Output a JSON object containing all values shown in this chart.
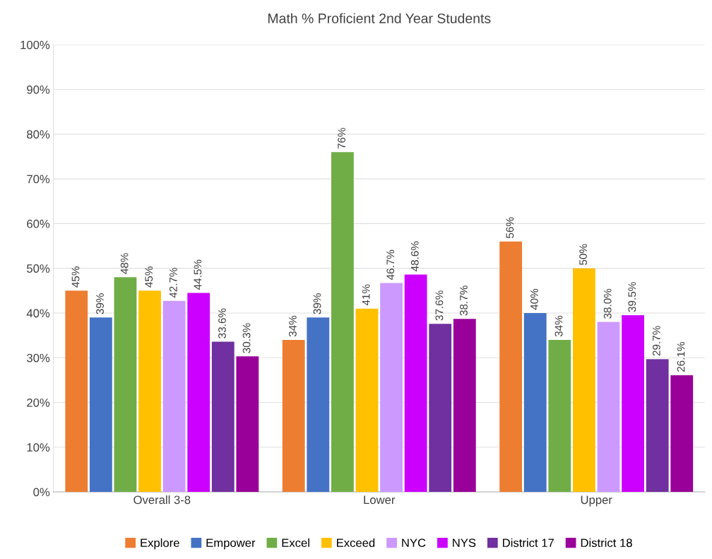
{
  "chart_data": {
    "type": "bar",
    "title": "Math % Proficient 2nd Year Students",
    "categories": [
      "Overall 3-8",
      "Lower",
      "Upper"
    ],
    "series": [
      {
        "name": "Explore",
        "color": "#ed7d31",
        "values": [
          45,
          34,
          56
        ],
        "value_labels": [
          "45%",
          "34%",
          "56%"
        ]
      },
      {
        "name": "Empower",
        "color": "#4472c4",
        "values": [
          39,
          39,
          40
        ],
        "value_labels": [
          "39%",
          "39%",
          "40%"
        ]
      },
      {
        "name": "Excel",
        "color": "#70ad47",
        "values": [
          48,
          76,
          34
        ],
        "value_labels": [
          "48%",
          "76%",
          "34%"
        ]
      },
      {
        "name": "Exceed",
        "color": "#ffc000",
        "values": [
          45,
          41,
          50
        ],
        "value_labels": [
          "45%",
          "41%",
          "50%"
        ]
      },
      {
        "name": "NYC",
        "color": "#cc99ff",
        "values": [
          42.7,
          46.7,
          38.0
        ],
        "value_labels": [
          "42.7%",
          "46.7%",
          "38.0%"
        ]
      },
      {
        "name": "NYS",
        "color": "#cc00ff",
        "values": [
          44.5,
          48.6,
          39.5
        ],
        "value_labels": [
          "44.5%",
          "48.6%",
          "39.5%"
        ]
      },
      {
        "name": "District 17",
        "color": "#7030a0",
        "values": [
          33.6,
          37.6,
          29.7
        ],
        "value_labels": [
          "33.6%",
          "37.6%",
          "29.7%"
        ]
      },
      {
        "name": "District 18",
        "color": "#990099",
        "values": [
          30.3,
          38.7,
          26.1
        ],
        "value_labels": [
          "30.3%",
          "38.7%",
          "26.1%"
        ]
      }
    ],
    "ylim": [
      0,
      100
    ],
    "yticks": [
      {
        "value": 0,
        "label": "0%"
      },
      {
        "value": 10,
        "label": "10%"
      },
      {
        "value": 20,
        "label": "20%"
      },
      {
        "value": 30,
        "label": "30%"
      },
      {
        "value": 40,
        "label": "40%"
      },
      {
        "value": 50,
        "label": "50%"
      },
      {
        "value": 60,
        "label": "60%"
      },
      {
        "value": 70,
        "label": "70%"
      },
      {
        "value": 80,
        "label": "80%"
      },
      {
        "value": 90,
        "label": "90%"
      },
      {
        "value": 100,
        "label": "100%"
      }
    ],
    "grid": "y",
    "legend": "bottom"
  }
}
